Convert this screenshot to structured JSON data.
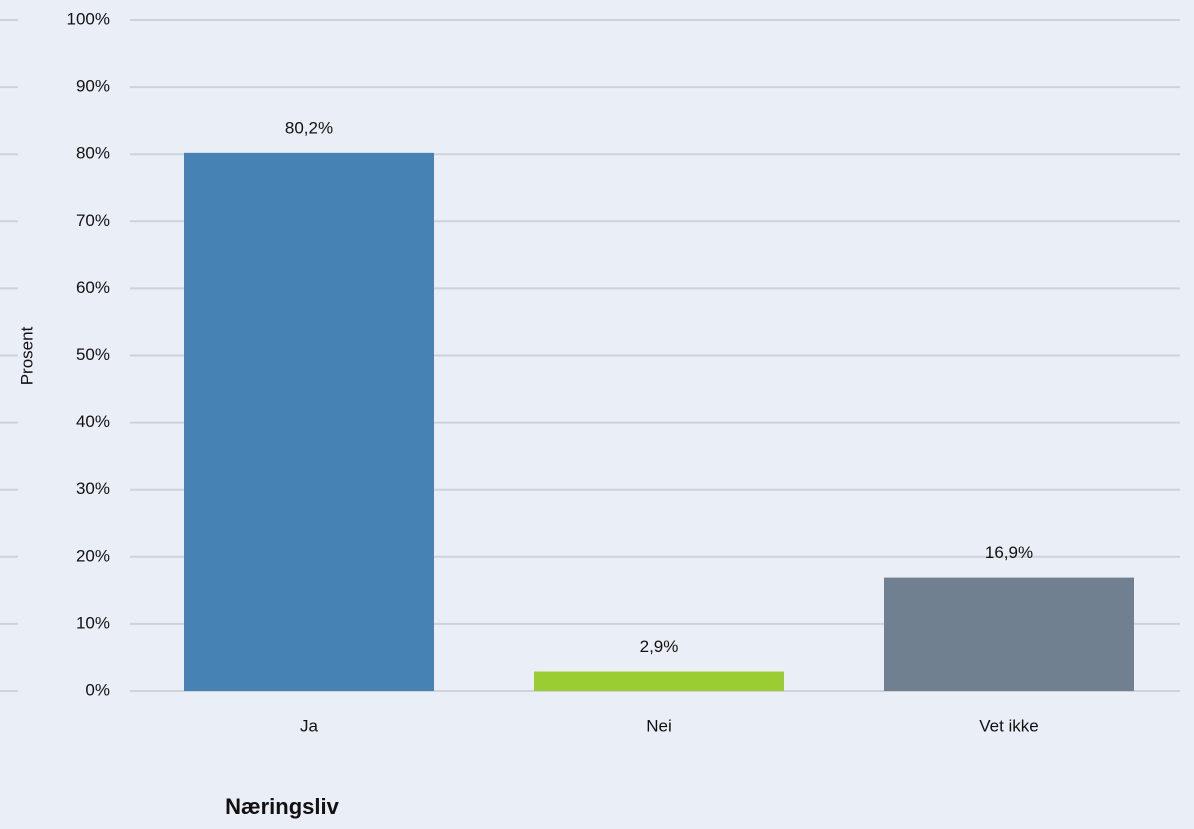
{
  "chart_data": {
    "type": "bar",
    "ylabel": "Prosent",
    "annotation": "Næringsliv",
    "categories": [
      "Ja",
      "Nei",
      "Vet ikke"
    ],
    "values": [
      80.2,
      2.9,
      16.9
    ],
    "value_labels": [
      "80,2%",
      "2,9%",
      "16,9%"
    ],
    "colors": [
      "#4682b4",
      "#9acd32",
      "#708090"
    ],
    "ylim": [
      0,
      100
    ],
    "yticks": [
      {
        "value": 0,
        "label": "0%"
      },
      {
        "value": 10,
        "label": "10%"
      },
      {
        "value": 20,
        "label": "20%"
      },
      {
        "value": 30,
        "label": "30%"
      },
      {
        "value": 40,
        "label": "40%"
      },
      {
        "value": 50,
        "label": "50%"
      },
      {
        "value": 60,
        "label": "60%"
      },
      {
        "value": 70,
        "label": "70%"
      },
      {
        "value": 80,
        "label": "80%"
      },
      {
        "value": 90,
        "label": "90%"
      },
      {
        "value": 100,
        "label": "100%"
      }
    ],
    "grid": true
  }
}
